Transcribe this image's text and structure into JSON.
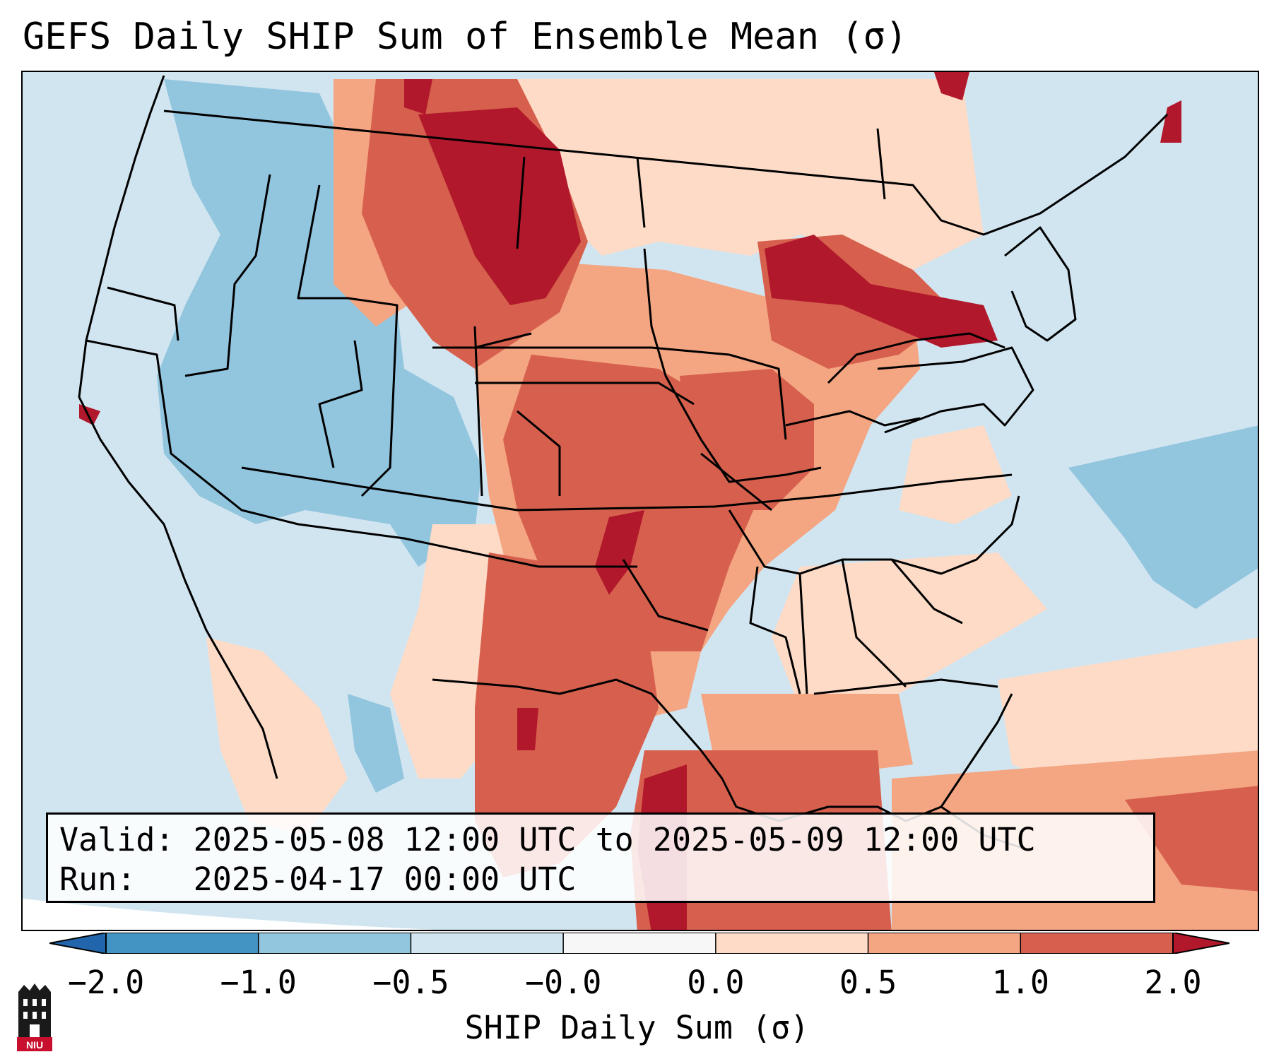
{
  "title": "GEFS Daily SHIP Sum of Ensemble Mean (σ)",
  "info": {
    "valid": "Valid: 2025-05-08 12:00 UTC to 2025-05-09 12:00 UTC",
    "run": "Run:   2025-04-17 00:00 UTC"
  },
  "colorbar": {
    "label": "SHIP Daily Sum (σ)",
    "ticks": [
      "−2.0",
      "−1.0",
      "−0.5",
      "−0.0",
      "0.0",
      "0.5",
      "1.0",
      "2.0"
    ],
    "colors": [
      "#4393c3",
      "#92c5de",
      "#d1e5f0",
      "#f7f7f7",
      "#fddbc7",
      "#f4a582",
      "#d6604d",
      "#b2182b"
    ],
    "extend_low_color": "#2166ac",
    "extend_high_color": "#b2182b"
  },
  "logo_text": "NIU",
  "legend_colors": {
    "below_-1": "#92c5de",
    "below_-0.5": "#d1e5f0",
    "above_0": "#fddbc7",
    "above_0.5": "#f4a582",
    "above_1": "#d6604d",
    "above_2": "#b2182b"
  }
}
